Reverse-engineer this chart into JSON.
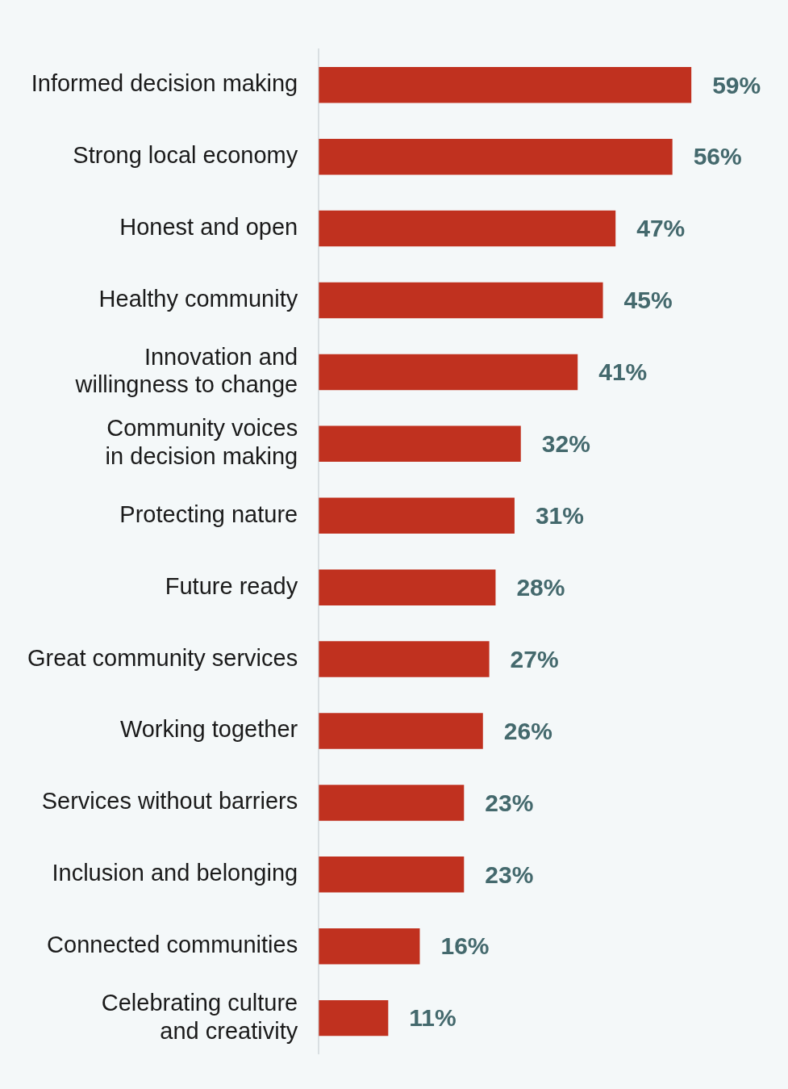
{
  "chart_data": {
    "type": "bar",
    "orientation": "horizontal",
    "categories": [
      "Informed decision making",
      "Strong local economy",
      "Honest and open",
      "Healthy community",
      "Innovation and willingness to change",
      "Community voices in decision making",
      "Protecting nature",
      "Future ready",
      "Great community services",
      "Working together",
      "Services without barriers",
      "Inclusion and belonging",
      "Connected communities",
      "Celebrating culture and creativity"
    ],
    "values": [
      59,
      56,
      47,
      45,
      41,
      32,
      31,
      28,
      27,
      26,
      23,
      23,
      16,
      11
    ],
    "value_labels": [
      "59%",
      "56%",
      "47%",
      "45%",
      "41%",
      "32%",
      "31%",
      "28%",
      "27%",
      "26%",
      "23%",
      "23%",
      "16%",
      "11%"
    ],
    "color": "#c0311f",
    "tick_labels": "y",
    "grid": false
  }
}
